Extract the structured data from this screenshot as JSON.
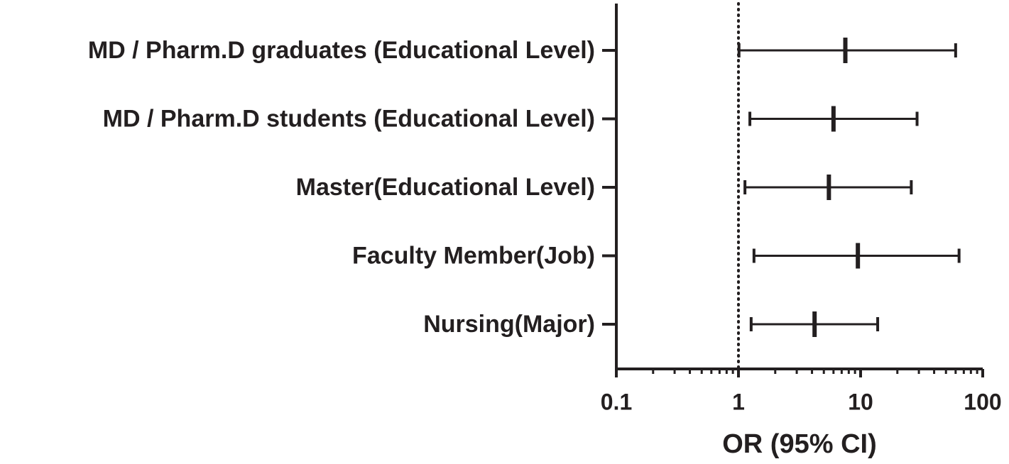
{
  "chart_data": {
    "type": "forest",
    "categories": [
      "MD / Pharm.D graduates (Educational Level)",
      "MD / Pharm.D students (Educational Level)",
      "Master(Educational Level)",
      "Faculty Member(Job)",
      "Nursing(Major)"
    ],
    "values": [
      7.5,
      6.0,
      5.5,
      9.5,
      4.2
    ],
    "lower": [
      1.01,
      1.24,
      1.13,
      1.34,
      1.27
    ],
    "upper": [
      60,
      29,
      26,
      64,
      13.8
    ],
    "xlabel": "OR (95% CI)",
    "xlim": [
      0.1,
      100
    ],
    "xscale": "log",
    "xticks": [
      0.1,
      1,
      10,
      100
    ],
    "xticks_minor": [
      0.2,
      0.3,
      0.4,
      0.5,
      0.6,
      0.7,
      0.8,
      0.9,
      2,
      3,
      4,
      5,
      6,
      7,
      8,
      9,
      20,
      30,
      40,
      50,
      60,
      70,
      80,
      90
    ],
    "reference_line": 1,
    "color": "#231f20"
  }
}
